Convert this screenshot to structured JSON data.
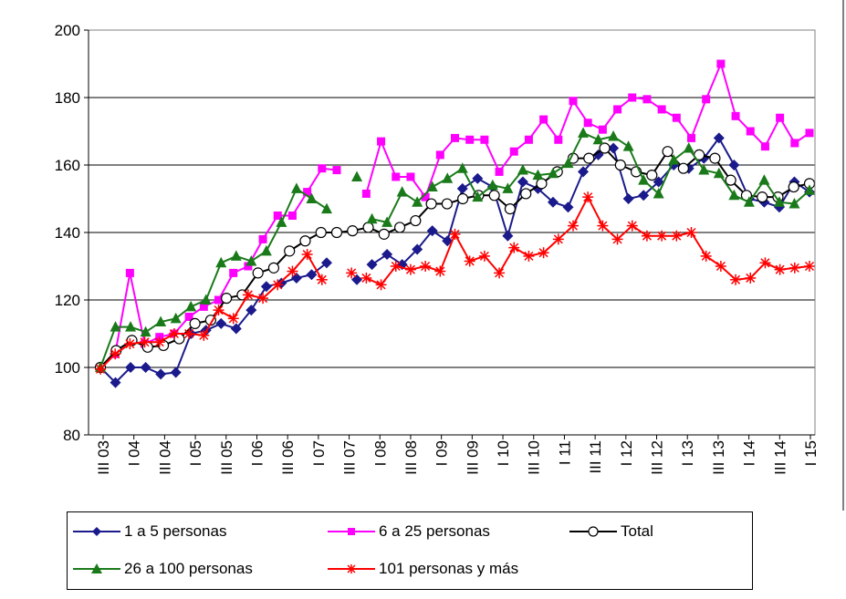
{
  "chart_data": {
    "type": "line",
    "title": "",
    "xlabel": "",
    "ylabel": "",
    "ylim": [
      80,
      200
    ],
    "yticks": [
      80,
      100,
      120,
      140,
      160,
      180,
      200
    ],
    "grid": "horizontal",
    "legend_position": "bottom",
    "x_tick_labels": [
      "III 03",
      "I 04",
      "III 04",
      "I 05",
      "III 05",
      "I 06",
      "III 06",
      "I 07",
      "III 07",
      "I 08",
      "III 08",
      "I 09",
      "III 09",
      "I 10",
      "III 10",
      "I 11",
      "III 11",
      "I 12",
      "III 12",
      "I 13",
      "III 13",
      "I 14",
      "III 14",
      "I 15"
    ],
    "series": [
      {
        "name": "1 a 5 personas",
        "color": "#1a1a8c",
        "marker": "diamond",
        "gaps": [
          18
        ],
        "values": [
          100,
          95.5,
          100,
          100,
          98,
          98.5,
          110,
          111,
          113,
          111.5,
          117,
          124,
          125,
          126.5,
          127.5,
          131,
          null,
          126,
          130.5,
          133.5,
          130.5,
          135,
          140.5,
          137.5,
          153,
          156,
          153.5,
          139,
          155,
          153,
          149,
          147.5,
          158,
          163,
          165,
          150,
          151,
          155,
          160,
          159,
          162,
          168,
          160,
          150,
          149,
          147.5,
          155,
          152
        ]
      },
      {
        "name": "6 a 25 personas",
        "color": "#ff00ff",
        "marker": "square",
        "gaps": [
          18
        ],
        "values": [
          100,
          104,
          128,
          107,
          109,
          110,
          115,
          118,
          120,
          128,
          130,
          138,
          145,
          145,
          152,
          159,
          158.5,
          null,
          151.5,
          167,
          156.5,
          156.5,
          150.5,
          163,
          168,
          167.5,
          167.5,
          158,
          164,
          167.5,
          173.5,
          167.5,
          179,
          172.5,
          170.5,
          176.5,
          180,
          179.5,
          176.5,
          174,
          168,
          179.5,
          190,
          174.5,
          170,
          165.5,
          174,
          166.5,
          169.5
        ]
      },
      {
        "name": "Total",
        "color": "#000000",
        "marker": "open-circle",
        "gaps": [],
        "values": [
          100,
          105,
          108,
          106,
          106.5,
          108.5,
          113,
          114,
          120.5,
          121.5,
          128,
          129.5,
          134.5,
          137.5,
          140,
          140,
          140.5,
          141.5,
          139.5,
          141.5,
          143.5,
          148.5,
          148.5,
          150,
          151,
          151,
          147,
          151.5,
          154.5,
          158,
          162,
          162,
          165,
          160,
          158,
          157,
          164,
          159,
          163,
          162,
          155.5,
          151,
          150.5,
          150.5,
          153.5,
          154.5
        ]
      },
      {
        "name": "26 a 100 personas",
        "color": "#1a7a1a",
        "marker": "triangle",
        "gaps": [
          18
        ],
        "values": [
          100,
          112,
          112,
          110.5,
          113.5,
          114.5,
          118,
          120,
          131,
          133,
          131.5,
          134.5,
          143,
          153,
          150,
          147,
          null,
          156.5,
          144,
          143,
          152,
          149,
          153.5,
          156,
          159,
          150.5,
          154,
          153,
          158.5,
          157,
          157.5,
          160.5,
          169.5,
          167.5,
          168.5,
          165.5,
          155.5,
          151.5,
          161.5,
          165,
          158.5,
          157.5,
          151,
          149,
          155.5,
          149,
          148.5,
          152.5
        ]
      },
      {
        "name": "101 personas y más",
        "color": "#ff0000",
        "marker": "star",
        "gaps": [
          18
        ],
        "values": [
          99.5,
          104,
          107,
          107.5,
          107.5,
          110,
          110,
          109.5,
          117,
          114.5,
          121.5,
          120.5,
          124.5,
          128.5,
          133.5,
          126,
          null,
          128,
          126.5,
          124.5,
          130,
          129,
          130,
          128.5,
          139.5,
          131.5,
          133,
          128,
          135.5,
          133,
          134,
          138,
          142,
          150.5,
          142,
          138,
          142,
          139,
          139,
          139,
          140,
          133,
          130,
          126,
          126.5,
          131,
          129,
          129.5,
          130
        ]
      }
    ]
  }
}
